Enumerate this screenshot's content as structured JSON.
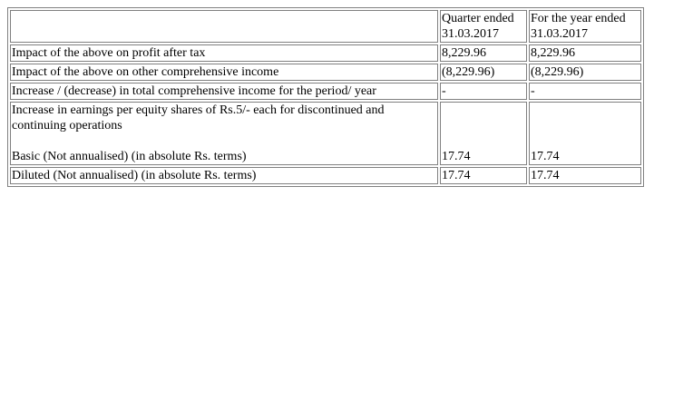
{
  "table": {
    "header": {
      "label": "",
      "quarter_line1": "Quarter ended",
      "quarter_line2": "31.03.2017",
      "year_line1": "For the year ended",
      "year_line2": "31.03.2017"
    },
    "rows": [
      {
        "label": "Impact of the above on profit after tax",
        "quarter": "8,229.96",
        "year": "8,229.96"
      },
      {
        "label": "Impact of the above on other comprehensive income",
        "quarter": "(8,229.96)",
        "year": "(8,229.96)"
      },
      {
        "label": "Increase / (decrease) in total comprehensive income for the period/ year",
        "quarter": "-",
        "year": "-"
      },
      {
        "label_line1": "Increase in earnings per equity shares of Rs.5/- each for discontinued and",
        "label_line2": "continuing operations",
        "label_line3": "Basic (Not annualised) (in absolute Rs. terms)",
        "quarter": "17.74",
        "year": "17.74"
      },
      {
        "label": "Diluted (Not annualised) (in absolute Rs. terms)",
        "quarter": "17.74",
        "year": "17.74"
      }
    ]
  }
}
